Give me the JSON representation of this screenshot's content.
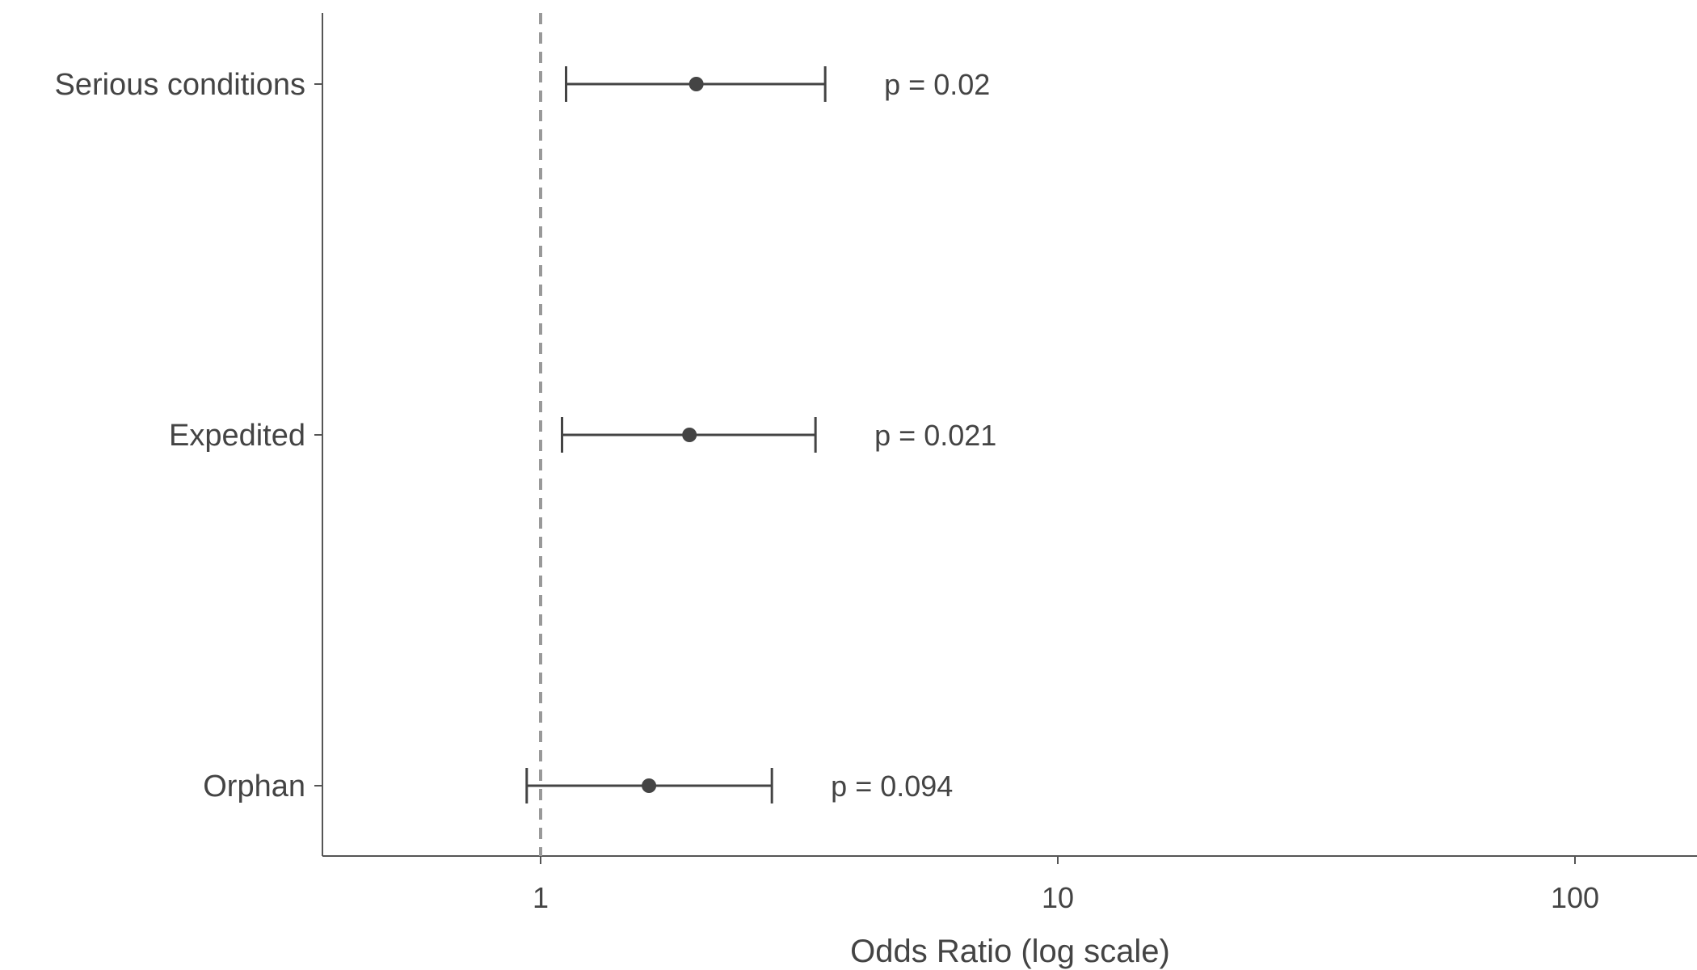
{
  "chart_data": {
    "type": "forest",
    "xlabel": "Odds Ratio (log scale)",
    "x_scale": "log",
    "xlim": [
      0.4,
      150
    ],
    "x_ticks": [
      {
        "value": 1,
        "label": "1"
      },
      {
        "value": 10,
        "label": "10"
      },
      {
        "value": 100,
        "label": "100"
      }
    ],
    "reference_line": 1,
    "grid": false,
    "colors": {
      "points": "#444444",
      "axis": "#555555",
      "reference": "#999999"
    },
    "rows": [
      {
        "label": "Serious conditions",
        "or": 2.0,
        "lower": 1.12,
        "upper": 3.55,
        "p_text": "p = 0.02"
      },
      {
        "label": "Expedited",
        "or": 1.94,
        "lower": 1.1,
        "upper": 3.4,
        "p_text": "p = 0.021"
      },
      {
        "label": "Orphan",
        "or": 1.62,
        "lower": 0.94,
        "upper": 2.8,
        "p_text": "p = 0.094"
      }
    ]
  }
}
